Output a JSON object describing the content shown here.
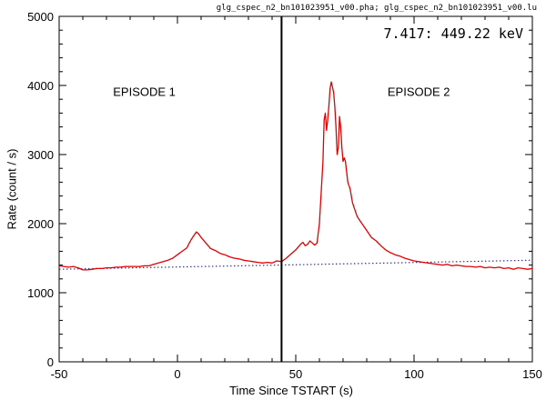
{
  "chart_data": {
    "type": "line",
    "header": "glg_cspec_n2_bn101023951_v00.pha; glg_cspec_n2_bn101023951_v00.lu",
    "energy_label": "7.417: 449.22 keV",
    "xlabel": "Time Since TSTART (s)",
    "ylabel": "Rate (count / s)",
    "xlim": [
      -50,
      150
    ],
    "ylim": [
      0,
      5000
    ],
    "x_ticks": [
      -50,
      0,
      50,
      100,
      150
    ],
    "y_ticks": [
      0,
      1000,
      2000,
      3000,
      4000,
      5000
    ],
    "grid": false,
    "annotations": [
      {
        "text": "EPISODE 1",
        "x": -14,
        "y": 3850
      },
      {
        "text": "EPISODE 2",
        "x": 102,
        "y": 3850
      }
    ],
    "vertical_line_x": 44,
    "background_fit": {
      "x": [
        -50,
        150
      ],
      "y": [
        1340,
        1470
      ],
      "style": "dotted",
      "color": "#2b2bd6"
    },
    "series": [
      {
        "color": "#e00000",
        "x": [
          -50,
          -48,
          -46,
          -44,
          -42,
          -40,
          -38,
          -36,
          -34,
          -32,
          -30,
          -28,
          -26,
          -24,
          -22,
          -20,
          -18,
          -16,
          -14,
          -12,
          -10,
          -8,
          -6,
          -4,
          -2,
          0,
          2,
          4,
          5,
          6,
          7,
          8,
          9,
          10,
          11,
          12,
          13,
          14,
          16,
          18,
          20,
          22,
          24,
          26,
          28,
          30,
          32,
          34,
          36,
          38,
          40,
          42,
          44,
          46,
          48,
          50,
          52,
          53,
          54,
          55,
          56,
          57,
          58,
          59,
          60,
          60.5,
          61,
          61.5,
          62,
          62.5,
          63,
          63.5,
          64,
          64.5,
          65,
          65.5,
          66,
          66.5,
          67,
          67.5,
          68,
          68.5,
          69,
          69.5,
          70,
          70.5,
          71,
          71.5,
          72,
          72.5,
          73,
          73.5,
          74,
          75,
          76,
          77,
          78,
          79,
          80,
          82,
          84,
          86,
          88,
          90,
          92,
          94,
          96,
          98,
          100,
          102,
          104,
          106,
          108,
          110,
          112,
          114,
          116,
          118,
          120,
          122,
          124,
          126,
          128,
          130,
          132,
          134,
          136,
          138,
          140,
          142,
          144,
          146,
          148,
          150
        ],
        "y": [
          1390,
          1380,
          1370,
          1380,
          1360,
          1330,
          1330,
          1340,
          1350,
          1350,
          1360,
          1360,
          1370,
          1370,
          1380,
          1380,
          1380,
          1380,
          1390,
          1390,
          1410,
          1430,
          1450,
          1470,
          1500,
          1550,
          1600,
          1650,
          1720,
          1780,
          1830,
          1880,
          1850,
          1800,
          1760,
          1720,
          1680,
          1640,
          1610,
          1570,
          1550,
          1520,
          1500,
          1490,
          1470,
          1460,
          1450,
          1440,
          1430,
          1440,
          1430,
          1460,
          1450,
          1500,
          1560,
          1620,
          1700,
          1730,
          1680,
          1700,
          1750,
          1720,
          1690,
          1720,
          2000,
          2300,
          2600,
          2900,
          3500,
          3600,
          3350,
          3500,
          3700,
          3950,
          4050,
          3980,
          3900,
          3700,
          3400,
          3000,
          3100,
          3550,
          3400,
          3100,
          2900,
          2950,
          2900,
          2750,
          2600,
          2550,
          2500,
          2400,
          2300,
          2200,
          2100,
          2050,
          2000,
          1950,
          1900,
          1800,
          1750,
          1680,
          1620,
          1580,
          1550,
          1530,
          1500,
          1480,
          1460,
          1450,
          1440,
          1430,
          1420,
          1410,
          1400,
          1410,
          1390,
          1400,
          1390,
          1380,
          1380,
          1370,
          1380,
          1360,
          1370,
          1360,
          1370,
          1350,
          1360,
          1340,
          1360,
          1350,
          1340,
          1350
        ]
      }
    ]
  }
}
